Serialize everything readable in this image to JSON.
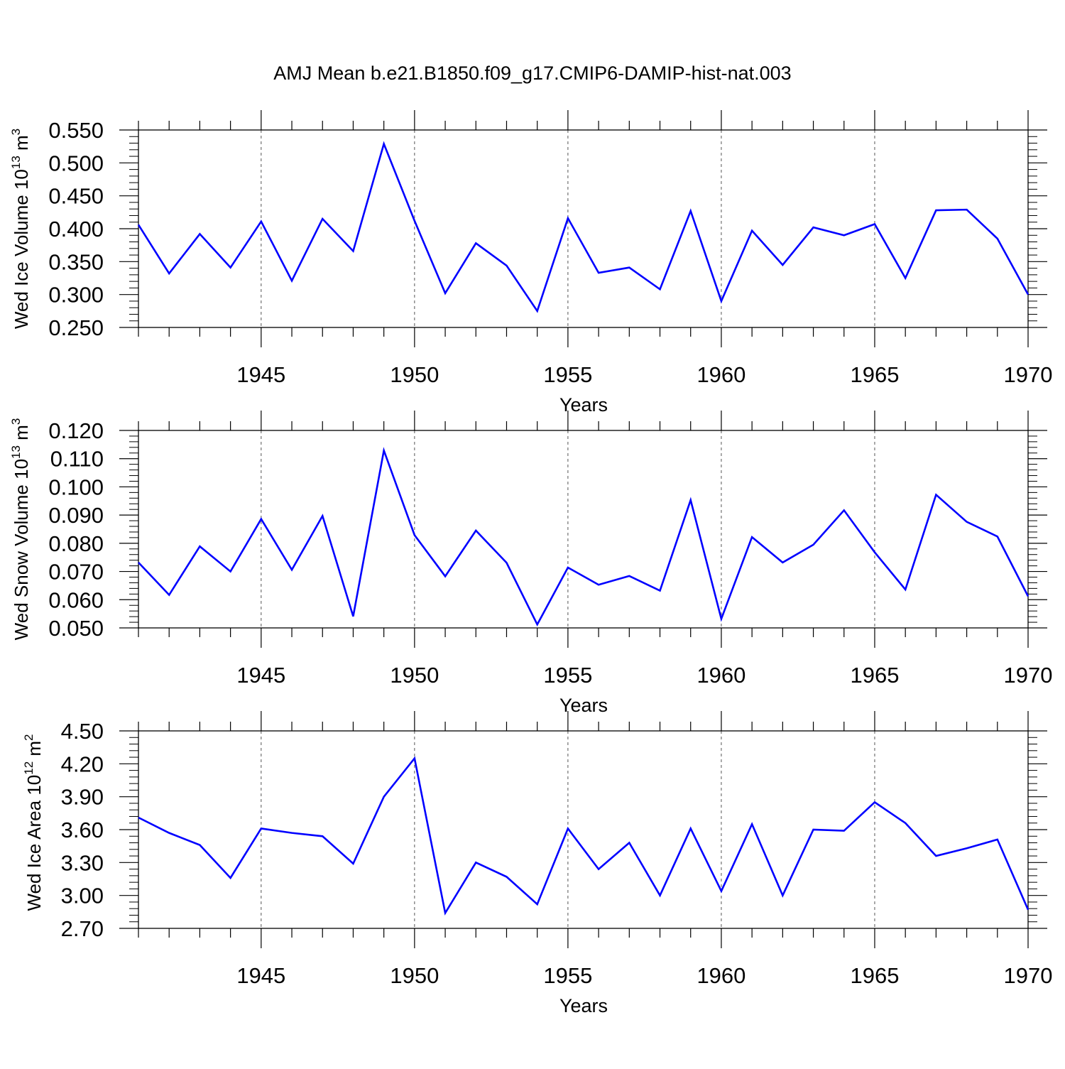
{
  "title": "AMJ Mean b.e21.B1850.f09_g17.CMIP6-DAMIP-hist-nat.003",
  "line_color": "#0000ff",
  "chart_data": [
    {
      "type": "line",
      "ylabel": "Wed Ice Volume 10",
      "ylabel_exp": "13",
      "ylabel_unit": " m",
      "ylabel_unit_exp": "3",
      "xlabel": "Years",
      "xlim": [
        1941,
        1970
      ],
      "ylim": [
        0.25,
        0.55
      ],
      "yticks": [
        "0.250",
        "0.300",
        "0.350",
        "0.400",
        "0.450",
        "0.500",
        "0.550"
      ],
      "xticks": [
        "1945",
        "1950",
        "1955",
        "1960",
        "1965",
        "1970"
      ],
      "grid": "vertical-dashed",
      "x": [
        1941,
        1942,
        1943,
        1944,
        1945,
        1946,
        1947,
        1948,
        1949,
        1950,
        1951,
        1952,
        1953,
        1954,
        1955,
        1956,
        1957,
        1958,
        1959,
        1960,
        1961,
        1962,
        1963,
        1964,
        1965,
        1966,
        1967,
        1968,
        1969,
        1970
      ],
      "values": [
        0.406,
        0.332,
        0.392,
        0.341,
        0.411,
        0.321,
        0.415,
        0.366,
        0.529,
        0.412,
        0.302,
        0.378,
        0.344,
        0.275,
        0.416,
        0.333,
        0.341,
        0.308,
        0.427,
        0.29,
        0.397,
        0.345,
        0.402,
        0.39,
        0.407,
        0.325,
        0.428,
        0.429,
        0.385,
        0.3
      ]
    },
    {
      "type": "line",
      "ylabel": "Wed Snow Volume 10",
      "ylabel_exp": "13",
      "ylabel_unit": " m",
      "ylabel_unit_exp": "3",
      "xlabel": "Years",
      "xlim": [
        1941,
        1970
      ],
      "ylim": [
        0.05,
        0.12
      ],
      "yticks": [
        "0.050",
        "0.060",
        "0.070",
        "0.080",
        "0.090",
        "0.100",
        "0.110",
        "0.120"
      ],
      "xticks": [
        "1945",
        "1950",
        "1955",
        "1960",
        "1965",
        "1970"
      ],
      "grid": "vertical-dashed",
      "x": [
        1941,
        1942,
        1943,
        1944,
        1945,
        1946,
        1947,
        1948,
        1949,
        1950,
        1951,
        1952,
        1953,
        1954,
        1955,
        1956,
        1957,
        1958,
        1959,
        1960,
        1961,
        1962,
        1963,
        1964,
        1965,
        1966,
        1967,
        1968,
        1969,
        1970
      ],
      "values": [
        0.0732,
        0.0617,
        0.0789,
        0.07,
        0.0886,
        0.0706,
        0.0897,
        0.0541,
        0.1129,
        0.0829,
        0.0683,
        0.0845,
        0.0731,
        0.0512,
        0.0714,
        0.0653,
        0.0684,
        0.0632,
        0.0953,
        0.0532,
        0.0822,
        0.0732,
        0.0795,
        0.0917,
        0.0768,
        0.0636,
        0.0972,
        0.0876,
        0.0824,
        0.0612
      ]
    },
    {
      "type": "line",
      "ylabel": "Wed Ice Area 10",
      "ylabel_exp": "12",
      "ylabel_unit": " m",
      "ylabel_unit_exp": "2",
      "xlabel": "Years",
      "xlim": [
        1941,
        1970
      ],
      "ylim": [
        2.7,
        4.5
      ],
      "yticks": [
        "2.70",
        "3.00",
        "3.30",
        "3.60",
        "3.90",
        "4.20",
        "4.50"
      ],
      "xticks": [
        "1945",
        "1950",
        "1955",
        "1960",
        "1965",
        "1970"
      ],
      "grid": "vertical-dashed",
      "x": [
        1941,
        1942,
        1943,
        1944,
        1945,
        1946,
        1947,
        1948,
        1949,
        1950,
        1951,
        1952,
        1953,
        1954,
        1955,
        1956,
        1957,
        1958,
        1959,
        1960,
        1961,
        1962,
        1963,
        1964,
        1965,
        1966,
        1967,
        1968,
        1969,
        1970
      ],
      "values": [
        3.71,
        3.57,
        3.46,
        3.16,
        3.61,
        3.57,
        3.54,
        3.29,
        3.9,
        4.25,
        2.84,
        3.3,
        3.17,
        2.92,
        3.61,
        3.24,
        3.48,
        3.0,
        3.61,
        3.04,
        3.65,
        3.0,
        3.6,
        3.59,
        3.85,
        3.66,
        3.36,
        3.43,
        3.51,
        2.87
      ]
    }
  ]
}
